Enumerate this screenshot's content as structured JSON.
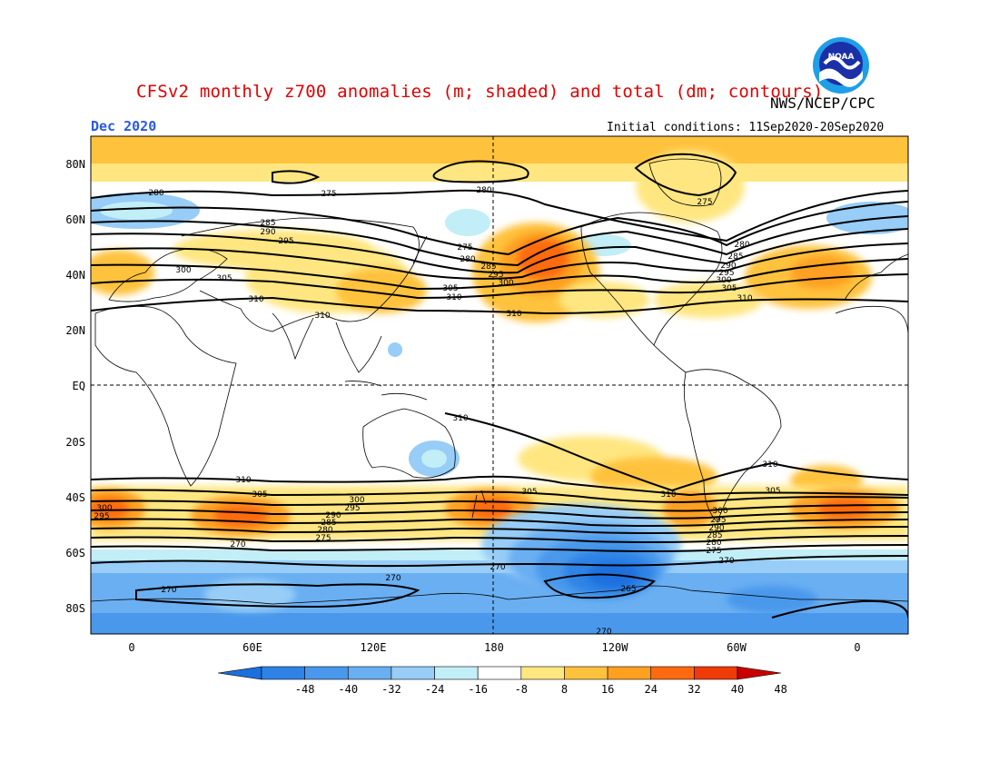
{
  "header": {
    "title": "CFSv2 monthly z700 anomalies (m; shaded) and total (dm; contours)",
    "agency": "NWS/NCEP/CPC",
    "month": "Dec 2020",
    "initial_conditions": "Initial conditions: 11Sep2020-20Sep2020",
    "logo_text": "NOAA"
  },
  "axes": {
    "lat_labels": [
      "80N",
      "60N",
      "40N",
      "20N",
      "EQ",
      "20S",
      "40S",
      "60S",
      "80S"
    ],
    "lon_labels": [
      "0",
      "60E",
      "120E",
      "180",
      "120W",
      "60W",
      "0"
    ]
  },
  "colorbar": {
    "labels": [
      "-48",
      "-40",
      "-32",
      "-24",
      "-16",
      "-8",
      "8",
      "16",
      "24",
      "32",
      "40",
      "48"
    ],
    "colors": [
      "#1e6fde",
      "#2f83e6",
      "#4a98ec",
      "#6aaff2",
      "#97cdf7",
      "#c2eef8",
      "#ffffff",
      "#ffe680",
      "#ffc23c",
      "#ffa020",
      "#ff6a10",
      "#f03a08",
      "#c80000"
    ]
  },
  "contour_labels": {
    "north": [
      "280",
      "275",
      "280",
      "275",
      "280",
      "285",
      "290",
      "295",
      "300",
      "305",
      "310",
      "275",
      "280",
      "285",
      "290",
      "295",
      "300",
      "305",
      "310",
      "310",
      "275",
      "280",
      "285",
      "290",
      "295",
      "300",
      "305",
      "310"
    ],
    "south": [
      "310",
      "310",
      "305",
      "300",
      "295",
      "290",
      "285",
      "280",
      "275",
      "270",
      "300",
      "295",
      "305",
      "310",
      "310",
      "305",
      "300",
      "295",
      "290",
      "285",
      "280",
      "275",
      "270",
      "270",
      "270",
      "265",
      "270"
    ]
  }
}
